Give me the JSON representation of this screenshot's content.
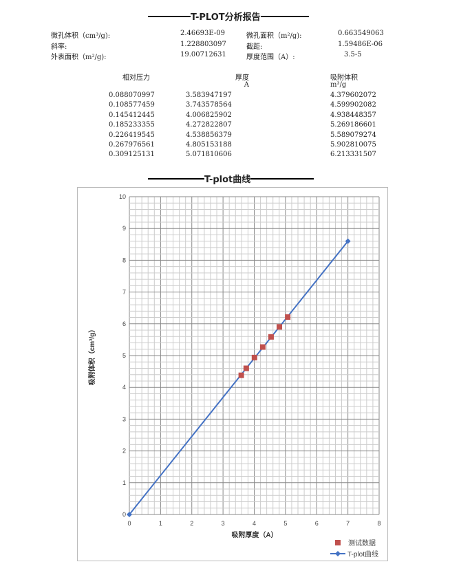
{
  "report_title": "T-PLOT分析报告",
  "summary": [
    {
      "label": "微孔体积（cm³/g):",
      "value": "2.46693E-09",
      "label2": "微孔面积（m²/g):",
      "value2": "0.663549063"
    },
    {
      "label": "斜率:",
      "value": "1.228803097",
      "label2": "截距:",
      "value2": "1.59486E-06"
    },
    {
      "label": "外表面积（m²/g):",
      "value": "19.00712631",
      "label2": "厚度范围（A）:",
      "value2": "3.5-5"
    }
  ],
  "table": {
    "headers": [
      "相对压力",
      "厚度",
      "吸附体积"
    ],
    "units": [
      "",
      "A",
      "m³/g"
    ],
    "rows": [
      [
        "0.088070997",
        "3.583947197",
        "4.379602072"
      ],
      [
        "0.108577459",
        "3.743578564",
        "4.599902082"
      ],
      [
        "0.145412445",
        "4.006825902",
        "4.938448357"
      ],
      [
        "0.185233355",
        "4.272822807",
        "5.269186601"
      ],
      [
        "0.226419545",
        "4.538856379",
        "5.589079274"
      ],
      [
        "0.267976561",
        "4.805153188",
        "5.902810075"
      ],
      [
        "0.309125131",
        "5.071810606",
        "6.213331507"
      ]
    ]
  },
  "chart_title": "T-plot曲线",
  "chart_data": {
    "type": "scatter",
    "xlabel": "吸附厚度（A）",
    "ylabel": "吸附体积（cm³/g）",
    "xlim": [
      0,
      8
    ],
    "ylim": [
      0,
      10
    ],
    "xticks": [
      "0",
      "1",
      "2",
      "3",
      "4",
      "5",
      "6",
      "7",
      "8"
    ],
    "yticks": [
      "0",
      "1",
      "2",
      "3",
      "4",
      "5",
      "6",
      "7",
      "8",
      "9",
      "10"
    ],
    "grid": true,
    "minor_grid_step": 0.2,
    "legend": "bottom-right",
    "series": [
      {
        "name": "测试数据",
        "kind": "scatter",
        "color": "#c0504d",
        "x": [
          3.583947197,
          3.743578564,
          4.006825902,
          4.272822807,
          4.538856379,
          4.805153188,
          5.071810606
        ],
        "y": [
          4.379602072,
          4.599902082,
          4.938448357,
          5.269186601,
          5.589079274,
          5.902810075,
          6.213331507
        ]
      },
      {
        "name": "T-plot曲线",
        "kind": "line",
        "color": "#4472c4",
        "x": [
          0,
          7
        ],
        "y": [
          0,
          8.6
        ]
      }
    ]
  }
}
